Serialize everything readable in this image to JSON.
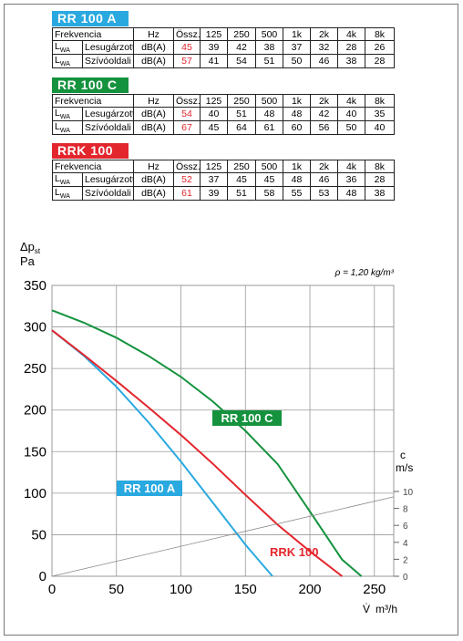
{
  "tables": [
    {
      "name": "RR 100 A",
      "color": "#29a9e0",
      "header": [
        "Frekvencia",
        "Hz",
        "Össz.",
        "125",
        "250",
        "500",
        "1k",
        "2k",
        "4k",
        "8k"
      ],
      "rows": [
        {
          "symbol": "L",
          "symbol_sub": "WA",
          "cells": [
            "Lesugárzott",
            "dB(A)",
            45,
            39,
            42,
            38,
            37,
            32,
            28,
            26
          ]
        },
        {
          "symbol": "L",
          "symbol_sub": "WA",
          "cells": [
            "Szívóoldali",
            "dB(A)",
            57,
            41,
            54,
            51,
            50,
            46,
            38,
            28
          ]
        }
      ]
    },
    {
      "name": "RR 100 C",
      "color": "#14923e",
      "header": [
        "Frekvencia",
        "Hz",
        "Össz.",
        "125",
        "250",
        "500",
        "1k",
        "2k",
        "4k",
        "8k"
      ],
      "rows": [
        {
          "symbol": "L",
          "symbol_sub": "WA",
          "cells": [
            "Lesugárzott",
            "dB(A)",
            54,
            40,
            51,
            48,
            48,
            42,
            40,
            35
          ]
        },
        {
          "symbol": "L",
          "symbol_sub": "WA",
          "cells": [
            "Szívóoldali",
            "dB(A)",
            67,
            45,
            64,
            61,
            60,
            56,
            50,
            40
          ]
        }
      ]
    },
    {
      "name": "RRK 100",
      "color": "#e3262d",
      "header": [
        "Frekvencia",
        "Hz",
        "Össz.",
        "125",
        "250",
        "500",
        "1k",
        "2k",
        "4k",
        "8k"
      ],
      "rows": [
        {
          "symbol": "L",
          "symbol_sub": "WA",
          "cells": [
            "Lesugárzott",
            "dB(A)",
            52,
            37,
            45,
            45,
            48,
            46,
            36,
            28
          ]
        },
        {
          "symbol": "L",
          "symbol_sub": "WA",
          "cells": [
            "Szívóoldali",
            "dB(A)",
            61,
            39,
            51,
            58,
            55,
            53,
            48,
            38
          ]
        }
      ]
    }
  ],
  "chart_data": {
    "type": "line",
    "y_label": "Δp",
    "y_label_sub": "st",
    "y_unit": "Pa",
    "y2_label": "c",
    "y2_unit": "m/s",
    "x_label": "V̇",
    "x_unit": "m³/h",
    "annotation": "ρ = 1,20 kg/m³",
    "xlim": [
      0,
      265
    ],
    "xticks": [
      0,
      50,
      100,
      150,
      200,
      250
    ],
    "ylim": [
      0,
      350
    ],
    "yticks": [
      0,
      50,
      100,
      150,
      200,
      250,
      300,
      350
    ],
    "y2lim": [
      0,
      34.3
    ],
    "y2ticks": [
      0,
      2,
      4,
      6,
      8,
      10
    ],
    "grid": true,
    "series": [
      {
        "name": "RR 100 A",
        "color": "#29a9e0",
        "x": [
          0,
          25,
          50,
          75,
          100,
          125,
          150,
          171
        ],
        "values": [
          296,
          265,
          228,
          185,
          138,
          88,
          38,
          0
        ]
      },
      {
        "name": "RR 100 C",
        "color": "#14923e",
        "x": [
          0,
          25,
          50,
          75,
          100,
          125,
          150,
          175,
          200,
          225,
          240
        ],
        "values": [
          320,
          305,
          287,
          265,
          240,
          210,
          175,
          135,
          78,
          20,
          0
        ]
      },
      {
        "name": "RRK 100",
        "color": "#e3262d",
        "x": [
          0,
          25,
          50,
          75,
          100,
          125,
          150,
          175,
          200,
          225
        ],
        "values": [
          296,
          266,
          235,
          203,
          170,
          135,
          98,
          62,
          30,
          0
        ]
      },
      {
        "color": "#888888",
        "axis": "y2",
        "x": [
          0,
          265
        ],
        "values": [
          0,
          9.37
        ]
      }
    ]
  }
}
